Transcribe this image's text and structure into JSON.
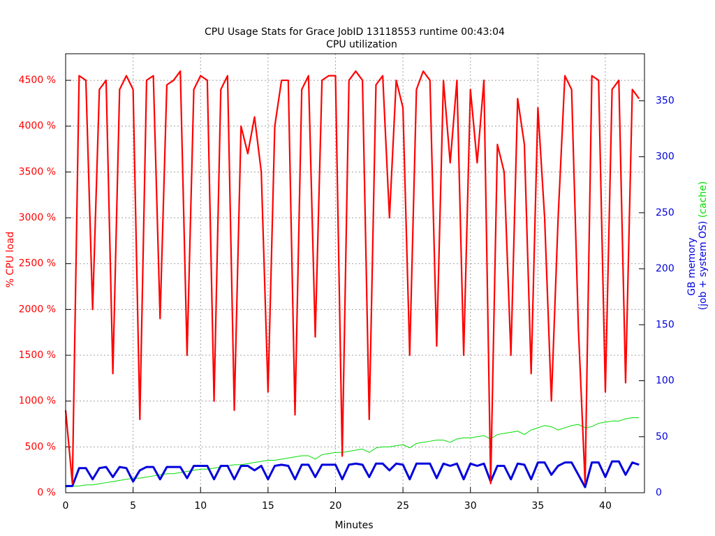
{
  "chart_data": {
    "type": "line",
    "title": "CPU Usage Stats for Grace JobID 13118553  runtime 00:43:04",
    "subtitle": "CPU utilization",
    "xlabel": "Minutes",
    "ylabel": "%  CPU load",
    "y2label": "GB memory",
    "y2label_line2": "(job + system OS)",
    "y2label_line3": "(cache)",
    "grid": true,
    "xlim": [
      0,
      42.9
    ],
    "xticks": [
      0,
      5,
      10,
      15,
      20,
      25,
      30,
      35,
      40
    ],
    "ylim": [
      0,
      4790
    ],
    "yticks": [
      {
        "value": 0,
        "label": "0 %"
      },
      {
        "value": 500,
        "label": "500 %"
      },
      {
        "value": 1000,
        "label": "1000 %"
      },
      {
        "value": 1500,
        "label": "1500 %"
      },
      {
        "value": 2000,
        "label": "2000 %"
      },
      {
        "value": 2500,
        "label": "2500 %"
      },
      {
        "value": 3000,
        "label": "3000 %"
      },
      {
        "value": 3500,
        "label": "3500 %"
      },
      {
        "value": 4000,
        "label": "4000 %"
      },
      {
        "value": 4500,
        "label": "4500 %"
      }
    ],
    "y2lim": [
      0,
      392
    ],
    "y2ticks": [
      0,
      50,
      100,
      150,
      200,
      250,
      300,
      350
    ],
    "ycolor": "#ff0000",
    "y2color": "#0000dd",
    "x": [
      0,
      0.5,
      1,
      1.5,
      2,
      2.5,
      3,
      3.5,
      4,
      4.5,
      5,
      5.5,
      6,
      6.5,
      7,
      7.5,
      8,
      8.5,
      9,
      9.5,
      10,
      10.5,
      11,
      11.5,
      12,
      12.5,
      13,
      13.5,
      14,
      14.5,
      15,
      15.5,
      16,
      16.5,
      17,
      17.5,
      18,
      18.5,
      19,
      19.5,
      20,
      20.5,
      21,
      21.5,
      22,
      22.5,
      23,
      23.5,
      24,
      24.5,
      25,
      25.5,
      26,
      26.5,
      27,
      27.5,
      28,
      28.5,
      29,
      29.5,
      30,
      30.5,
      31,
      31.5,
      32,
      32.5,
      33,
      33.5,
      34,
      34.5,
      35,
      35.5,
      36,
      36.5,
      37,
      37.5,
      38,
      38.5,
      39,
      39.5,
      40,
      40.5,
      41,
      41.5,
      42,
      42.5
    ],
    "series": [
      {
        "color": "#00dd00",
        "axis": "y2",
        "width": 1,
        "values": [
          5,
          6,
          6,
          7,
          7,
          8,
          9,
          10,
          11,
          12,
          13,
          13,
          14,
          15,
          16,
          17,
          17,
          18,
          19,
          20,
          21,
          21,
          22,
          23,
          24,
          25,
          25,
          26,
          27,
          28,
          29,
          29,
          30,
          31,
          32,
          33,
          33,
          30,
          34,
          35,
          36,
          36,
          37,
          38,
          39,
          36,
          40,
          41,
          41,
          42,
          43,
          40,
          44,
          45,
          46,
          47,
          47,
          45,
          48,
          49,
          49,
          50,
          51,
          48,
          52,
          53,
          54,
          55,
          52,
          56,
          58,
          60,
          59,
          56,
          58,
          60,
          61,
          58,
          59,
          62,
          63,
          64,
          64,
          66,
          67,
          67
        ]
      },
      {
        "color": "#0000dd",
        "axis": "y2",
        "width": 3,
        "values": [
          6,
          6,
          22,
          22,
          12,
          22,
          23,
          14,
          23,
          22,
          10,
          20,
          23,
          23,
          12,
          23,
          23,
          23,
          13,
          24,
          24,
          24,
          12,
          24,
          24,
          12,
          24,
          24,
          20,
          24,
          12,
          24,
          25,
          24,
          12,
          25,
          25,
          14,
          25,
          25,
          25,
          12,
          25,
          26,
          25,
          14,
          26,
          26,
          20,
          26,
          25,
          12,
          26,
          26,
          26,
          13,
          26,
          24,
          26,
          12,
          26,
          24,
          26,
          10,
          24,
          24,
          12,
          26,
          25,
          12,
          27,
          27,
          16,
          24,
          27,
          27,
          16,
          5,
          27,
          27,
          14,
          28,
          28,
          16,
          27,
          25
        ]
      },
      {
        "color": "#ff0000",
        "axis": "y",
        "width": 2.2,
        "values": [
          900,
          100,
          4550,
          4500,
          2000,
          4400,
          4500,
          1300,
          4400,
          4550,
          4400,
          800,
          4500,
          4550,
          1900,
          4450,
          4500,
          4600,
          1500,
          4400,
          4550,
          4500,
          1000,
          4400,
          4550,
          900,
          4000,
          3700,
          4100,
          3500,
          1100,
          4000,
          4500,
          4500,
          850,
          4400,
          4550,
          1700,
          4500,
          4550,
          4550,
          400,
          4500,
          4600,
          4500,
          800,
          4450,
          4550,
          3000,
          4500,
          4200,
          1500,
          4400,
          4600,
          4500,
          1600,
          4500,
          3600,
          4500,
          1500,
          4400,
          3600,
          4500,
          100,
          3800,
          3500,
          1500,
          4300,
          3800,
          1300,
          4200,
          3000,
          1000,
          3000,
          4550,
          4400,
          1800,
          100,
          4550,
          4500,
          1100,
          4400,
          4500,
          1200,
          4400,
          4300
        ]
      }
    ]
  }
}
